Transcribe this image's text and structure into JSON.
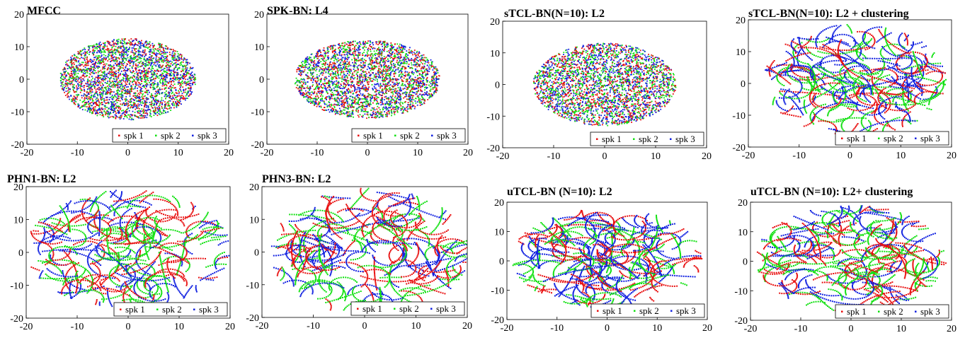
{
  "colors": {
    "spk1": "#e81010",
    "spk2": "#10e010",
    "spk3": "#1020e0"
  },
  "chart_data": [
    {
      "type": "scatter",
      "title": "MFCC",
      "xlim": [
        -20,
        20
      ],
      "ylim": [
        -20,
        20
      ],
      "xticks": [
        "-20",
        "-10",
        "0",
        "10",
        "20"
      ],
      "yticks": [
        "20",
        "10",
        "0",
        "-10",
        "-20"
      ],
      "cloud": {
        "cx": 0,
        "cy": 0,
        "rx": 13.5,
        "ry": 12.5,
        "style": "dense"
      },
      "legend": [
        "spk 1",
        "spk 2",
        "spk 3"
      ],
      "legend_position": "bottom-right"
    },
    {
      "type": "scatter",
      "title": "SPK-BN: L4",
      "xlim": [
        -20,
        20
      ],
      "ylim": [
        -20,
        20
      ],
      "xticks": [
        "-20",
        "-10",
        "0",
        "10",
        "20"
      ],
      "yticks": [
        "20",
        "10",
        "0",
        "-10",
        "-20"
      ],
      "cloud": {
        "cx": 0,
        "cy": 0,
        "rx": 14.5,
        "ry": 12,
        "style": "dense"
      },
      "legend": [
        "spk 1",
        "spk 2",
        "spk 3"
      ],
      "legend_position": "bottom-right"
    },
    {
      "type": "scatter",
      "title": "sTCL-BN(N=10): L2",
      "xlim": [
        -20,
        20
      ],
      "ylim": [
        -20,
        20
      ],
      "xticks": [
        "-20",
        "-10",
        "0",
        "10",
        "20"
      ],
      "yticks": [
        "20",
        "10",
        "0",
        "-10",
        "-20"
      ],
      "cloud": {
        "cx": 0,
        "cy": 0,
        "rx": 14,
        "ry": 13,
        "style": "dense"
      },
      "legend": [
        "spk 1",
        "spk 2",
        "spk 3"
      ],
      "legend_position": "bottom-right"
    },
    {
      "type": "scatter",
      "title": "sTCL-BN(N=10): L2 + clustering",
      "xlim": [
        -20,
        20
      ],
      "ylim": [
        -20,
        20
      ],
      "xticks": [
        "-20",
        "-10",
        "0",
        "10",
        "20"
      ],
      "yticks": [
        "20",
        "10",
        "0",
        "-10",
        "-20"
      ],
      "cloud": {
        "cx": 1,
        "cy": 1,
        "rx": 18,
        "ry": 17.5,
        "style": "swirl"
      },
      "legend": [
        "spk 1",
        "spk 2",
        "spk 3"
      ],
      "legend_position": "bottom-right"
    },
    {
      "type": "scatter",
      "title": "PHN1-BN: L2",
      "xlim": [
        -20,
        20
      ],
      "ylim": [
        -20,
        20
      ],
      "xticks": [
        "-20",
        "-10",
        "0",
        "10",
        "20"
      ],
      "yticks": [
        "20",
        "10",
        "0",
        "-10",
        "-20"
      ],
      "cloud": {
        "cx": 0,
        "cy": 1,
        "rx": 20,
        "ry": 18,
        "style": "swirl"
      },
      "legend": [
        "spk 1",
        "spk 2",
        "spk 3"
      ],
      "legend_position": "bottom-right"
    },
    {
      "type": "scatter",
      "title": "PHN3-BN: L2",
      "xlim": [
        -20,
        20
      ],
      "ylim": [
        -20,
        20
      ],
      "xticks": [
        "-20",
        "-10",
        "0",
        "10",
        "20"
      ],
      "yticks": [
        "20",
        "10",
        "0",
        "-10",
        "-20"
      ],
      "cloud": {
        "cx": 1,
        "cy": 0,
        "rx": 19.5,
        "ry": 19.5,
        "style": "swirl"
      },
      "legend": [
        "spk 1",
        "spk 2",
        "spk 3"
      ],
      "legend_position": "bottom-right"
    },
    {
      "type": "scatter",
      "title": "uTCL-BN (N=10): L2",
      "xlim": [
        -20,
        20
      ],
      "ylim": [
        -20,
        20
      ],
      "xticks": [
        "-20",
        "-10",
        "0",
        "10",
        "20"
      ],
      "yticks": [
        "20",
        "10",
        "0",
        "-10",
        "-20"
      ],
      "cloud": {
        "cx": 0,
        "cy": 1,
        "rx": 19,
        "ry": 17,
        "style": "swirl"
      },
      "legend": [
        "spk 1",
        "spk 2",
        "spk 3"
      ],
      "legend_position": "bottom-right"
    },
    {
      "type": "scatter",
      "title": "uTCL-BN (N=10): L2+ clustering",
      "xlim": [
        -20,
        20
      ],
      "ylim": [
        -20,
        20
      ],
      "xticks": [
        "-20",
        "-10",
        "0",
        "10",
        "20"
      ],
      "yticks": [
        "20",
        "10",
        "0",
        "-10",
        "-20"
      ],
      "cloud": {
        "cx": 0,
        "cy": 1,
        "rx": 19,
        "ry": 18,
        "style": "swirl"
      },
      "legend": [
        "spk 1",
        "spk 2",
        "spk 3"
      ],
      "legend_position": "bottom-right"
    }
  ]
}
